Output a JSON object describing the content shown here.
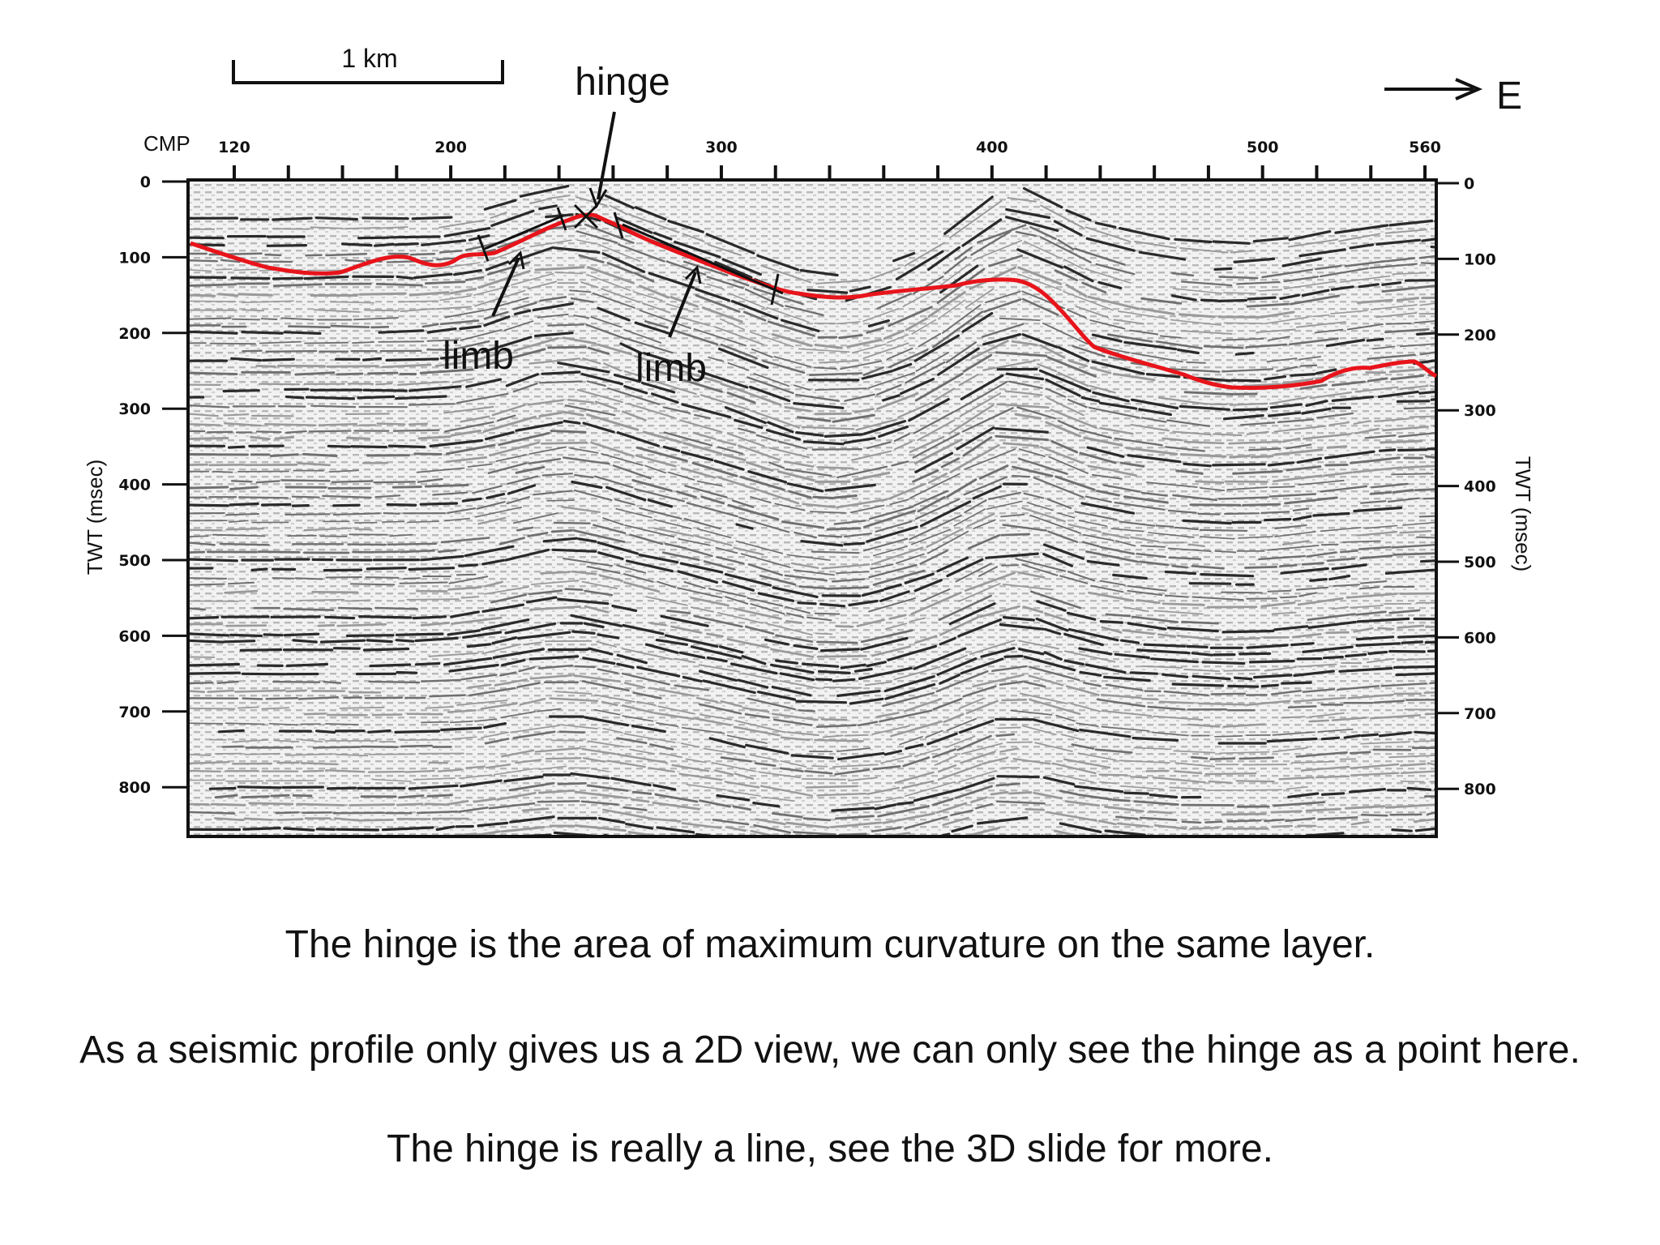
{
  "scale_bar": {
    "label": "1 km"
  },
  "direction": {
    "label": "E"
  },
  "axes": {
    "top": {
      "title": "CMP",
      "ticks": [
        "120",
        "200",
        "300",
        "400",
        "500",
        "560"
      ]
    },
    "left": {
      "title": "TWT (msec)",
      "ticks": [
        "0",
        "100",
        "200",
        "300",
        "400",
        "500",
        "600",
        "700",
        "800"
      ]
    },
    "right": {
      "title": "TWT (msec)",
      "ticks": [
        "0",
        "100",
        "200",
        "300",
        "400",
        "500",
        "600",
        "700",
        "800"
      ]
    }
  },
  "annotations": {
    "hinge": "hinge",
    "limb_left": "limb",
    "limb_right": "limb"
  },
  "horizon_color": "#e8141b",
  "caption": {
    "line1": "The hinge is the area of maximum curvature on the same layer.",
    "line2": "As a seismic profile only gives us a 2D view, we can only see the hinge as a point here.",
    "line3": "The hinge is really a line, see the 3D slide for more."
  }
}
